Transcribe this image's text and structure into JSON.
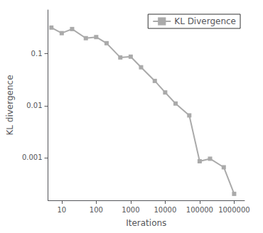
{
  "chart_data": {
    "type": "line",
    "x": [
      5,
      10,
      20,
      50,
      100,
      200,
      500,
      1000,
      2000,
      5000,
      10000,
      20000,
      50000,
      100000,
      200000,
      500000,
      1000000
    ],
    "series": [
      {
        "name": "KL Divergence",
        "color": "#aaaaaa",
        "marker": "square",
        "values": [
          0.32,
          0.25,
          0.3,
          0.2,
          0.21,
          0.16,
          0.085,
          0.088,
          0.055,
          0.03,
          0.018,
          0.011,
          0.0065,
          0.00085,
          0.00095,
          0.00065,
          0.0002
        ]
      }
    ],
    "xlabel": "Iterations",
    "ylabel": "KL divergence",
    "log": true,
    "xlim": [
      4,
      2000000
    ],
    "ylim": [
      0.00015,
      0.7
    ],
    "xticks": [
      10,
      100,
      1000,
      10000,
      100000,
      1000000
    ],
    "yticks": [
      0.001,
      0.01,
      0.1
    ],
    "grid": false,
    "legend": "upper right"
  }
}
